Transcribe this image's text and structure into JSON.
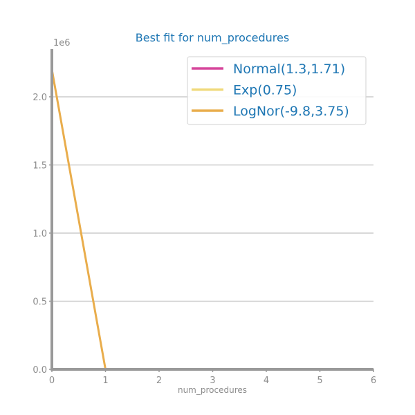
{
  "chart_data": {
    "type": "line",
    "title": "Best fit for num_procedures",
    "xlabel": "num_procedures",
    "ylabel": "",
    "y_offset_label": "1e6",
    "xlim": [
      0,
      6
    ],
    "ylim": [
      0,
      2.35
    ],
    "x_ticks": [
      0,
      1,
      2,
      3,
      4,
      5,
      6
    ],
    "x_tick_labels": [
      "0",
      "1",
      "2",
      "3",
      "4",
      "5",
      "6"
    ],
    "y_ticks": [
      0,
      0.5,
      1.0,
      1.5,
      2.0
    ],
    "y_tick_labels": [
      "0.0",
      "0.5",
      "1.0",
      "1.5",
      "2.0"
    ],
    "grid": "horizontal",
    "legend_position": "top-right",
    "series": [
      {
        "name": "Normal(1.3,1.71)",
        "color": "#d6479b",
        "x": [
          0,
          1,
          2,
          3,
          4,
          5,
          6
        ],
        "y": [
          0,
          0,
          0,
          0,
          0,
          0,
          0
        ]
      },
      {
        "name": "Exp(0.75)",
        "color": "#f0d97a",
        "x": [
          0,
          1,
          2,
          3,
          4,
          5,
          6
        ],
        "y": [
          0,
          0,
          0,
          0,
          0,
          0,
          0
        ]
      },
      {
        "name": "LogNor(-9.8,3.75)",
        "color": "#e9ad4c",
        "x": [
          0,
          1,
          2,
          3,
          4,
          5,
          6
        ],
        "y": [
          2.2,
          0,
          0,
          0,
          0,
          0,
          0
        ]
      }
    ]
  }
}
